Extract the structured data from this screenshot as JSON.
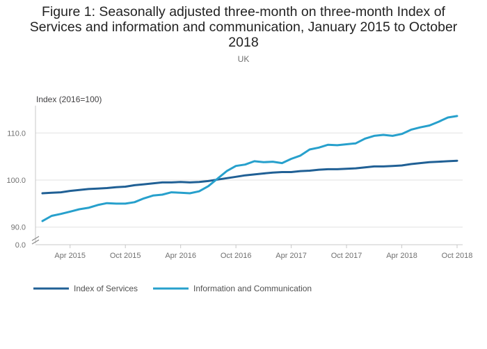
{
  "title": "Figure 1: Seasonally adjusted three-month on three-month Index of Services and information and communication, January 2015 to October 2018",
  "subtitle": "UK",
  "chart_data": {
    "type": "line",
    "title": "Figure 1: Seasonally adjusted three-month on three-month Index of Services and information and communication, January 2015 to October 2018",
    "subtitle": "UK",
    "ylabel": "Index (2016=100)",
    "xlabel": "",
    "x": [
      "Jan 2015",
      "Feb 2015",
      "Mar 2015",
      "Apr 2015",
      "May 2015",
      "Jun 2015",
      "Jul 2015",
      "Aug 2015",
      "Sep 2015",
      "Oct 2015",
      "Nov 2015",
      "Dec 2015",
      "Jan 2016",
      "Feb 2016",
      "Mar 2016",
      "Apr 2016",
      "May 2016",
      "Jun 2016",
      "Jul 2016",
      "Aug 2016",
      "Sep 2016",
      "Oct 2016",
      "Nov 2016",
      "Dec 2016",
      "Jan 2017",
      "Feb 2017",
      "Mar 2017",
      "Apr 2017",
      "May 2017",
      "Jun 2017",
      "Jul 2017",
      "Aug 2017",
      "Sep 2017",
      "Oct 2017",
      "Nov 2017",
      "Dec 2017",
      "Jan 2018",
      "Feb 2018",
      "Mar 2018",
      "Apr 2018",
      "May 2018",
      "Jun 2018",
      "Jul 2018",
      "Aug 2018",
      "Sep 2018",
      "Oct 2018"
    ],
    "xticks": [
      "Apr 2015",
      "Oct 2015",
      "Apr 2016",
      "Oct 2016",
      "Apr 2017",
      "Oct 2017",
      "Apr 2018",
      "Oct 2018"
    ],
    "yticks": [
      "0.0",
      "90.0",
      "100.0",
      "110.0"
    ],
    "axis_break": true,
    "ylim": [
      88.5,
      116
    ],
    "series": [
      {
        "name": "Index of Services",
        "color": "#206095",
        "values": [
          97.2,
          97.3,
          97.4,
          97.7,
          97.9,
          98.1,
          98.2,
          98.3,
          98.5,
          98.6,
          98.9,
          99.1,
          99.3,
          99.5,
          99.5,
          99.6,
          99.5,
          99.6,
          99.8,
          100.1,
          100.4,
          100.7,
          101.0,
          101.2,
          101.4,
          101.6,
          101.7,
          101.7,
          101.9,
          102.0,
          102.2,
          102.3,
          102.3,
          102.4,
          102.5,
          102.7,
          102.9,
          102.9,
          103.0,
          103.1,
          103.4,
          103.6,
          103.8,
          103.9,
          104.0,
          104.1
        ]
      },
      {
        "name": "Information and Communication",
        "color": "#27a0cc",
        "values": [
          91.3,
          92.4,
          92.8,
          93.3,
          93.8,
          94.1,
          94.7,
          95.1,
          95.0,
          95.0,
          95.3,
          96.1,
          96.7,
          96.9,
          97.4,
          97.3,
          97.2,
          97.6,
          98.7,
          100.3,
          101.9,
          103.0,
          103.3,
          104.0,
          103.8,
          103.9,
          103.6,
          104.5,
          105.2,
          106.5,
          106.9,
          107.5,
          107.4,
          107.6,
          107.8,
          108.8,
          109.4,
          109.6,
          109.4,
          109.8,
          110.7,
          111.2,
          111.6,
          112.4,
          113.3,
          113.6
        ]
      }
    ],
    "legend": [
      "Index of Services",
      "Information and Communication"
    ],
    "legend_position": "bottom-left"
  }
}
